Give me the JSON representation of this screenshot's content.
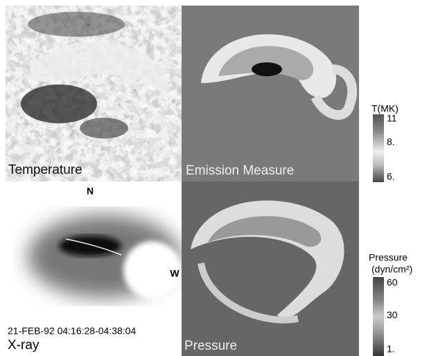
{
  "panels": [
    {
      "label": "Temperature"
    },
    {
      "label": "Emission Measure"
    },
    {
      "label": "X-ray",
      "annotations": [
        "N",
        "W",
        "21-FEB-92 04:16:28-04:38:04"
      ]
    },
    {
      "label": "Pressure"
    }
  ],
  "colorbars": [
    {
      "title": [
        "T(MK)"
      ],
      "ticks": [
        "11",
        "8.",
        "6."
      ]
    },
    {
      "title": [
        "Pressure",
        "(dyn/cm²)"
      ],
      "ticks": [
        "60",
        "30",
        "1."
      ]
    }
  ]
}
